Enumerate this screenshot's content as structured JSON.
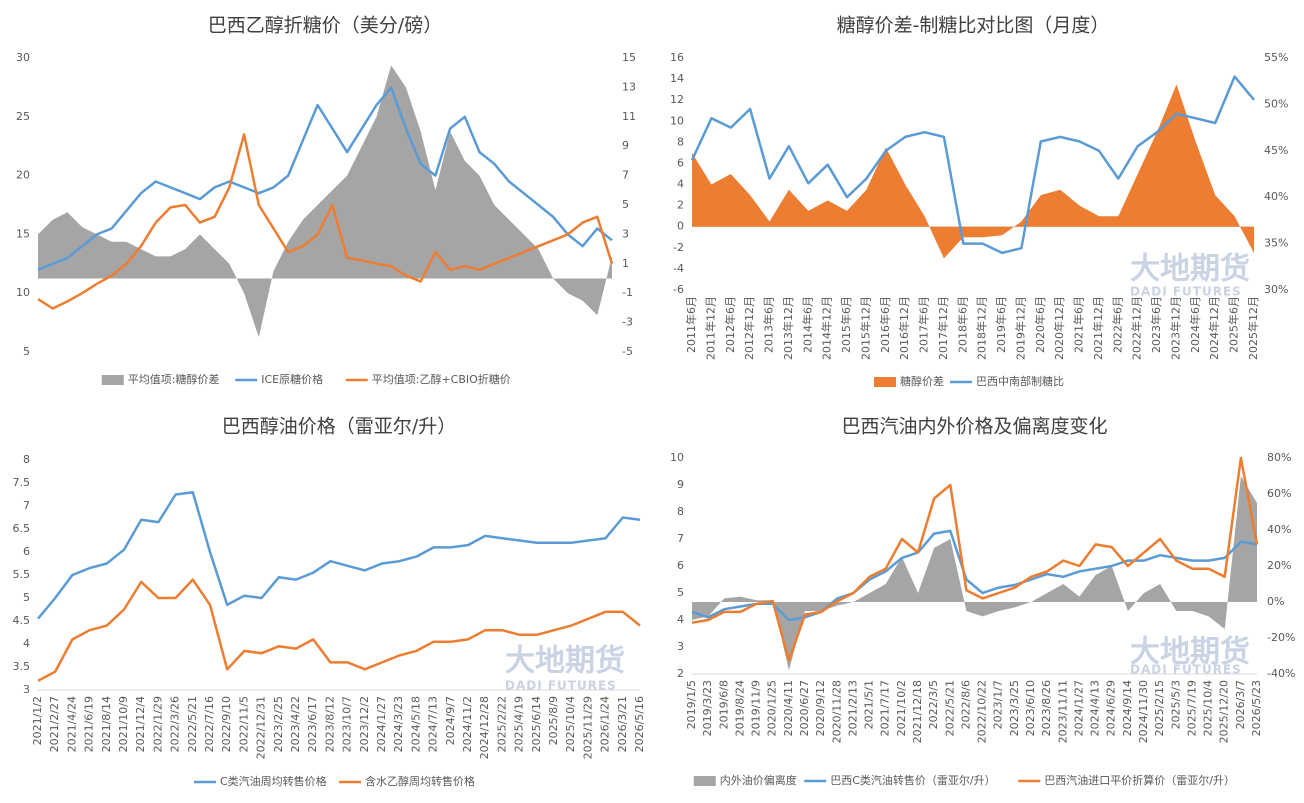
{
  "watermark": {
    "cn": "大地期货",
    "en": "DADI FUTURES"
  },
  "chart_data": [
    {
      "type": "line",
      "title": "巴西乙醇折糖价（美分/磅）",
      "ylim": [
        5,
        30
      ],
      "yticks": [
        5,
        10,
        15,
        20,
        25,
        30
      ],
      "y2lim": [
        -5,
        15
      ],
      "y2ticks": [
        -5,
        -3,
        -1,
        1,
        3,
        5,
        7,
        9,
        11,
        13,
        15
      ],
      "series": [
        {
          "name": "平均值项:糖醇价差",
          "type": "area",
          "axis": "y2",
          "color": "#a5a5a5",
          "values": [
            3,
            4,
            4.5,
            3.5,
            3,
            2.5,
            2.5,
            2,
            1.5,
            1.5,
            2,
            3,
            2,
            1,
            -1,
            -4,
            0.5,
            2.5,
            4,
            5,
            6,
            7,
            9,
            11,
            14.5,
            13,
            10,
            6,
            10,
            8,
            7,
            5,
            4,
            3,
            2,
            0,
            -1,
            -1.5,
            -2.5,
            1.5
          ]
        },
        {
          "name": "ICE原糖价格",
          "type": "line",
          "color": "#5b9bd5",
          "values": [
            12,
            12.5,
            13,
            14,
            15,
            15.5,
            17,
            18.5,
            19.5,
            19,
            18.5,
            18,
            19,
            19.5,
            19,
            18.5,
            19,
            20,
            23,
            26,
            24,
            22,
            24,
            26,
            27.5,
            24,
            21,
            20,
            24,
            25,
            22,
            21,
            19.5,
            18.5,
            17.5,
            16.5,
            15,
            14,
            15.5,
            14.5
          ]
        },
        {
          "name": "平均值项:乙醇+CBIO折糖价",
          "type": "line",
          "color": "#ed7d31",
          "values": [
            9.5,
            8.7,
            9.3,
            10,
            10.8,
            11.5,
            12.5,
            14,
            16,
            17.3,
            17.5,
            16,
            16.5,
            19,
            23.5,
            17.5,
            15.5,
            13.5,
            14,
            15,
            17.5,
            13,
            12.8,
            12.5,
            12.3,
            11.5,
            11,
            13.5,
            12,
            12.3,
            12,
            12.5,
            13,
            13.5,
            14,
            14.5,
            15,
            16,
            16.5,
            12.5
          ]
        }
      ]
    },
    {
      "type": "line",
      "title": "糖醇价差-制糖比对比图（月度）",
      "categories": [
        "2011年6月",
        "2011年12月",
        "2012年6月",
        "2012年12月",
        "2013年6月",
        "2013年12月",
        "2014年6月",
        "2014年12月",
        "2015年6月",
        "2015年12月",
        "2016年6月",
        "2016年12月",
        "2017年6月",
        "2017年12月",
        "2018年6月",
        "2018年12月",
        "2019年6月",
        "2019年12月",
        "2020年6月",
        "2020年12月",
        "2021年6月",
        "2021年12月",
        "2022年6月",
        "2022年12月",
        "2023年6月",
        "2023年12月",
        "2024年6月",
        "2024年12月",
        "2025年6月",
        "2025年12月"
      ],
      "ylim": [
        -6,
        16
      ],
      "yticks": [
        -6,
        -4,
        -2,
        0,
        2,
        4,
        6,
        8,
        10,
        12,
        14,
        16
      ],
      "y2lim": [
        30,
        55
      ],
      "y2ticks": [
        {
          "value": 30,
          "label": "30%"
        },
        {
          "value": 35,
          "label": "35%"
        },
        {
          "value": 40,
          "label": "40%"
        },
        {
          "value": 45,
          "label": "45%"
        },
        {
          "value": 50,
          "label": "50%"
        },
        {
          "value": 55,
          "label": "55%"
        }
      ],
      "series": [
        {
          "name": "糖醇价差",
          "type": "area",
          "color": "#ed7d31",
          "values": [
            7,
            4,
            5,
            3,
            0.5,
            3.5,
            1.5,
            2.5,
            1.5,
            3.5,
            7.5,
            4,
            1,
            -3,
            -1,
            -1,
            -0.8,
            0.5,
            3,
            3.5,
            2,
            1,
            1,
            5,
            9,
            13.5,
            8,
            3,
            1,
            -2.5
          ]
        },
        {
          "name": "巴西中南部制糖比",
          "type": "line",
          "axis": "y2",
          "color": "#5b9bd5",
          "values": [
            44,
            48.5,
            47.5,
            49.5,
            42,
            45.5,
            41.5,
            43.5,
            40,
            42,
            45,
            46.5,
            47,
            46.5,
            35,
            35,
            34,
            34.5,
            46,
            46.5,
            46,
            45,
            42,
            45.5,
            47,
            49,
            48.5,
            48,
            53,
            50.5
          ]
        }
      ]
    },
    {
      "type": "line",
      "title": "巴西醇油价格（雷亚尔/升）",
      "categories": [
        "2021/1/2",
        "2021/2/27",
        "2021/4/24",
        "2021/6/19",
        "2021/8/14",
        "2021/10/9",
        "2021/12/4",
        "2022/1/29",
        "2022/3/26",
        "2022/5/21",
        "2022/7/16",
        "2022/9/10",
        "2022/11/5",
        "2022/12/31",
        "2023/2/25",
        "2023/4/22",
        "2023/6/17",
        "2023/8/12",
        "2023/10/7",
        "2023/12/2",
        "2024/1/27",
        "2024/3/23",
        "2024/5/18",
        "2024/7/13",
        "2024/9/7",
        "2024/11/2",
        "2024/12/28",
        "2025/2/22",
        "2025/4/19",
        "2025/6/14",
        "2025/8/9",
        "2025/10/4",
        "2025/11/29",
        "2026/1/24",
        "2026/3/21",
        "2026/5/16"
      ],
      "ylim": [
        3,
        8
      ],
      "yticks": [
        3,
        3.5,
        4,
        4.5,
        5,
        5.5,
        6,
        6.5,
        7,
        7.5,
        8
      ],
      "series": [
        {
          "name": "C类汽油周均转售价格",
          "type": "line",
          "color": "#5b9bd5",
          "values": [
            4.55,
            5.0,
            5.5,
            5.65,
            5.75,
            6.05,
            6.7,
            6.65,
            7.25,
            7.3,
            6.0,
            4.85,
            5.05,
            5.0,
            5.45,
            5.4,
            5.55,
            5.8,
            5.7,
            5.6,
            5.75,
            5.8,
            5.9,
            6.1,
            6.1,
            6.15,
            6.35,
            6.3,
            6.25,
            6.2,
            6.2,
            6.2,
            6.25,
            6.3,
            6.75,
            6.7
          ]
        },
        {
          "name": "含水乙醇周均转售价格",
          "type": "line",
          "color": "#ed7d31",
          "values": [
            3.2,
            3.4,
            4.1,
            4.3,
            4.4,
            4.75,
            5.35,
            5.0,
            5.0,
            5.4,
            4.85,
            3.45,
            3.85,
            3.8,
            3.95,
            3.9,
            4.1,
            3.6,
            3.6,
            3.45,
            3.6,
            3.75,
            3.85,
            4.05,
            4.05,
            4.1,
            4.3,
            4.3,
            4.2,
            4.2,
            4.3,
            4.4,
            4.55,
            4.7,
            4.7,
            4.4
          ]
        }
      ]
    },
    {
      "type": "line",
      "title": "巴西汽油内外价格及偏离度变化",
      "categories": [
        "2019/1/5",
        "2019/3/23",
        "2019/6/8",
        "2019/8/24",
        "2019/11/9",
        "2020/1/25",
        "2020/4/11",
        "2020/6/27",
        "2020/9/12",
        "2020/11/28",
        "2021/2/13",
        "2021/5/1",
        "2021/7/17",
        "2021/10/2",
        "2021/12/18",
        "2022/3/5",
        "2022/5/21",
        "2022/8/6",
        "2022/10/22",
        "2023/1/7",
        "2023/3/25",
        "2023/6/10",
        "2023/8/26",
        "2023/11/11",
        "2024/1/27",
        "2024/4/13",
        "2024/6/29",
        "2024/9/14",
        "2024/11/30",
        "2025/2/15",
        "2025/5/3",
        "2025/7/19",
        "2025/10/4",
        "2025/12/20",
        "2026/3/7",
        "2026/5/23"
      ],
      "ylim": [
        2,
        10
      ],
      "yticks": [
        2,
        3,
        4,
        5,
        6,
        7,
        8,
        9,
        10
      ],
      "y2lim": [
        -40,
        80
      ],
      "y2ticks": [
        {
          "value": -40,
          "label": "-40%"
        },
        {
          "value": -20,
          "label": "-20%"
        },
        {
          "value": 0,
          "label": "0%"
        },
        {
          "value": 20,
          "label": "20%"
        },
        {
          "value": 40,
          "label": "40%"
        },
        {
          "value": 60,
          "label": "60%"
        },
        {
          "value": 80,
          "label": "80%"
        }
      ],
      "series": [
        {
          "name": "内外油价偏离度",
          "type": "area",
          "axis": "y2",
          "color": "#a5a5a5",
          "values": [
            -10,
            -8,
            2,
            3,
            1,
            1,
            -38,
            -5,
            -5,
            -2,
            0,
            5,
            10,
            25,
            5,
            30,
            35,
            -5,
            -8,
            -5,
            -3,
            0,
            5,
            10,
            3,
            15,
            20,
            -5,
            5,
            10,
            -5,
            -5,
            -8,
            -15,
            70,
            55
          ]
        },
        {
          "name": "巴西C类汽油转售价（雷亚尔/升）",
          "type": "line",
          "color": "#5b9bd5",
          "values": [
            4.3,
            4.1,
            4.4,
            4.5,
            4.6,
            4.6,
            4.0,
            4.1,
            4.3,
            4.8,
            5.0,
            5.5,
            5.8,
            6.3,
            6.5,
            7.2,
            7.3,
            5.5,
            5.0,
            5.2,
            5.3,
            5.5,
            5.7,
            5.6,
            5.8,
            5.9,
            6.0,
            6.2,
            6.2,
            6.4,
            6.3,
            6.2,
            6.2,
            6.3,
            6.9,
            6.8
          ]
        },
        {
          "name": "巴西汽油进口平价折算价（雷亚尔/升）",
          "type": "line",
          "color": "#ed7d31",
          "values": [
            3.9,
            4.0,
            4.3,
            4.3,
            4.6,
            4.7,
            2.5,
            4.2,
            4.3,
            4.7,
            5.0,
            5.6,
            5.9,
            7.0,
            6.5,
            8.5,
            9.0,
            5.1,
            4.8,
            5.0,
            5.2,
            5.6,
            5.8,
            6.2,
            6.0,
            6.8,
            6.7,
            6.0,
            6.5,
            7.0,
            6.2,
            5.9,
            5.9,
            5.6,
            10,
            6.8
          ]
        }
      ]
    }
  ]
}
